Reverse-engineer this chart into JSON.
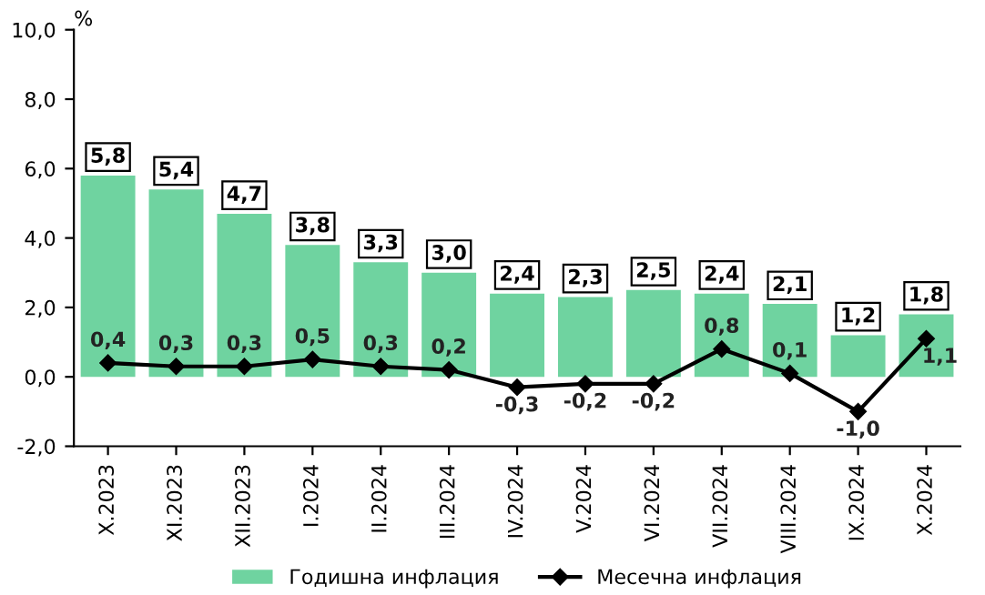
{
  "chart_data": {
    "type": "bar",
    "ylabel": "%",
    "categories": [
      "X.2023",
      "XI.2023",
      "XII.2023",
      "I.2024",
      "II.2024",
      "III.2024",
      "IV.2024",
      "V.2024",
      "VI.2024",
      "VII.2024",
      "VIII.2024",
      "IX.2024",
      "X.2024"
    ],
    "series": [
      {
        "name": "Годишна инфлация",
        "color": "#6fd3a0",
        "values": [
          5.8,
          5.4,
          4.7,
          3.8,
          3.3,
          3.0,
          2.4,
          2.3,
          2.5,
          2.4,
          2.1,
          1.2,
          1.8
        ],
        "value_labels": [
          "5,8",
          "5,4",
          "4,7",
          "3,8",
          "3,3",
          "3,0",
          "2,4",
          "2,3",
          "2,5",
          "2,4",
          "2,1",
          "1,2",
          "1,8"
        ]
      },
      {
        "name": "Месечна инфлация",
        "type": "line",
        "color": "#000000",
        "marker": "diamond",
        "values": [
          0.4,
          0.3,
          0.3,
          0.5,
          0.3,
          0.2,
          -0.3,
          -0.2,
          -0.2,
          0.8,
          0.1,
          -1.0,
          1.1
        ],
        "value_labels": [
          "0,4",
          "0,3",
          "0,3",
          "0,5",
          "0,3",
          "0,2",
          "-0,3",
          "-0,2",
          "-0,2",
          "0,8",
          "0,1",
          "-1,0",
          "1,1"
        ]
      }
    ],
    "ylim": [
      -2,
      10
    ],
    "yticks": [
      {
        "value": -2,
        "label": "-2,0"
      },
      {
        "value": 0,
        "label": "0,0"
      },
      {
        "value": 2,
        "label": "2,0"
      },
      {
        "value": 4,
        "label": "4,0"
      },
      {
        "value": 6,
        "label": "6,0"
      },
      {
        "value": 8,
        "label": "8,0"
      },
      {
        "value": 10,
        "label": "10,0"
      }
    ],
    "grid": false,
    "legend": "bottom"
  }
}
